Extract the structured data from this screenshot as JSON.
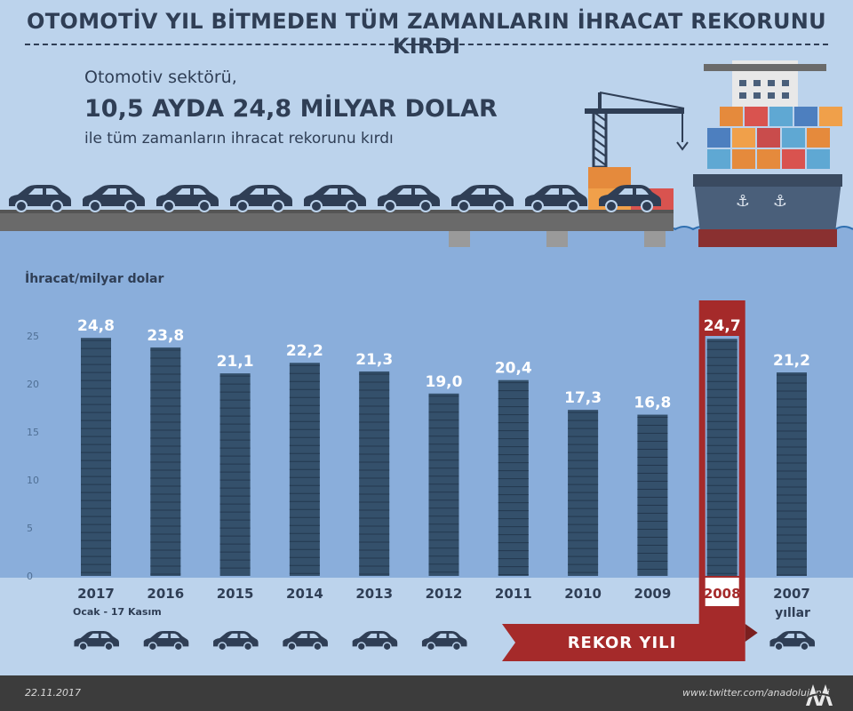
{
  "title": "OTOMOTİV YIL BİTMEDEN TÜM ZAMANLARIN İHRACAT REKORUNU KIRDI",
  "intro": {
    "line1": "Otomotiv sektörü,",
    "line2": "10,5 AYDA 24,8 MİLYAR DOLAR",
    "line3": "ile tüm zamanların ihracat rekorunu kırdı"
  },
  "colors": {
    "bg": "#bcd3ec",
    "chart_bg": "#8aaedb",
    "bar": "#34506b",
    "dark": "#2f3e55",
    "record": "#a52a2a",
    "footer": "#3c3c3c"
  },
  "chart_data": {
    "type": "bar",
    "ylabel": "İhracat/milyar dolar",
    "xlabel": "yıllar",
    "categories": [
      "2017",
      "2016",
      "2015",
      "2014",
      "2013",
      "2012",
      "2011",
      "2010",
      "2009",
      "2008",
      "2007"
    ],
    "category_notes": {
      "2017": "Ocak - 17 Kasım"
    },
    "values": [
      24.8,
      23.8,
      21.1,
      22.2,
      21.3,
      19.0,
      20.4,
      17.3,
      16.8,
      24.7,
      21.2
    ],
    "value_labels": [
      "24,8",
      "23,8",
      "21,1",
      "22,2",
      "21,3",
      "19,0",
      "20,4",
      "17,3",
      "16,8",
      "24,7",
      "21,2"
    ],
    "y_ticks": [
      0,
      5,
      10,
      15,
      20,
      25
    ],
    "ylim": [
      0,
      25
    ],
    "highlight_category": "2008",
    "highlight_label": "REKOR YILI",
    "grid": false
  },
  "footer": {
    "date": "22.11.2017",
    "link": "www.twitter.com/anadolujansi",
    "logo_text": "AA"
  }
}
